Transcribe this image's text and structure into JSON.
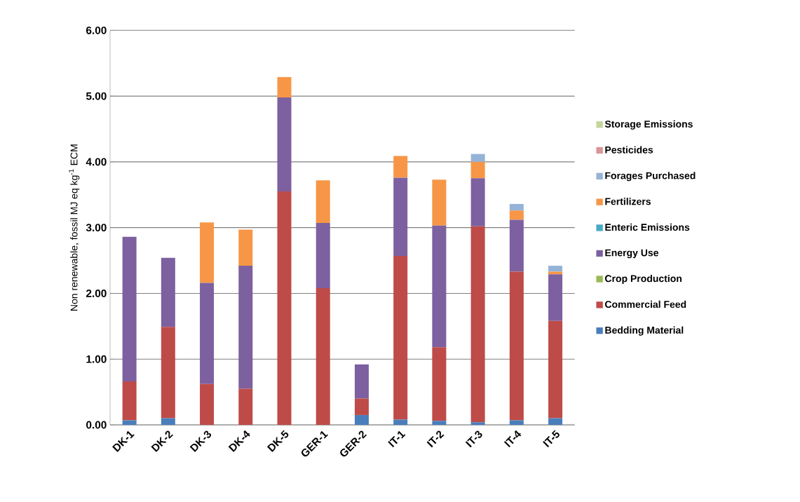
{
  "chart_data": {
    "type": "bar",
    "stacked": true,
    "ylabel": "Non renewable, fossil MJ eq kg$^{-1}$ ECM",
    "categories": [
      "DK-1",
      "DK-2",
      "DK-3",
      "DK-4",
      "DK-5",
      "GER-1",
      "GER-2",
      "IT-1",
      "IT-2",
      "IT-3",
      "IT-4",
      "IT-5"
    ],
    "series": [
      {
        "name": "Bedding Material",
        "color": "#4a7ebb",
        "values": [
          0.07,
          0.1,
          0,
          0,
          0,
          0,
          0.15,
          0.08,
          0.06,
          0.04,
          0.07,
          0.1
        ]
      },
      {
        "name": "Commercial Feed",
        "color": "#be4b48",
        "values": [
          0.59,
          1.39,
          0.62,
          0.55,
          3.55,
          2.08,
          0.25,
          2.49,
          1.12,
          2.98,
          2.26,
          1.48
        ]
      },
      {
        "name": "Crop Production",
        "color": "#98b954",
        "values": [
          0,
          0,
          0,
          0,
          0,
          0,
          0,
          0,
          0,
          0,
          0,
          0
        ]
      },
      {
        "name": "Energy Use",
        "color": "#7d60a0",
        "values": [
          2.2,
          1.05,
          1.54,
          1.87,
          1.43,
          0.99,
          0.52,
          1.19,
          1.85,
          0.73,
          0.79,
          0.71
        ]
      },
      {
        "name": "Enteric Emissions",
        "color": "#46aac5",
        "values": [
          0,
          0,
          0,
          0,
          0,
          0,
          0,
          0,
          0,
          0,
          0,
          0
        ]
      },
      {
        "name": "Fertilizers",
        "color": "#f79646",
        "values": [
          0,
          0,
          0.92,
          0.55,
          0.31,
          0.65,
          0,
          0.33,
          0.7,
          0.25,
          0.14,
          0.04
        ]
      },
      {
        "name": "Forages Purchased",
        "color": "#95b3d7",
        "values": [
          0,
          0,
          0,
          0,
          0,
          0,
          0,
          0,
          0,
          0.12,
          0.1,
          0.09
        ]
      },
      {
        "name": "Pesticides",
        "color": "#d99694",
        "values": [
          0,
          0,
          0,
          0,
          0,
          0,
          0,
          0,
          0,
          0,
          0,
          0
        ]
      },
      {
        "name": "Storage Emissions",
        "color": "#c3d69b",
        "values": [
          0,
          0,
          0,
          0,
          0,
          0,
          0,
          0,
          0,
          0,
          0,
          0
        ]
      }
    ],
    "ylim": [
      0,
      6
    ],
    "yticks": [
      {
        "value": 0,
        "label": "0.00"
      },
      {
        "value": 1,
        "label": "1.00"
      },
      {
        "value": 2,
        "label": "2.00"
      },
      {
        "value": 3,
        "label": "3.00"
      },
      {
        "value": 4,
        "label": "4.00"
      },
      {
        "value": 5,
        "label": "5.00"
      },
      {
        "value": 6,
        "label": "6.00"
      }
    ],
    "grid": "y",
    "legend": "right"
  }
}
